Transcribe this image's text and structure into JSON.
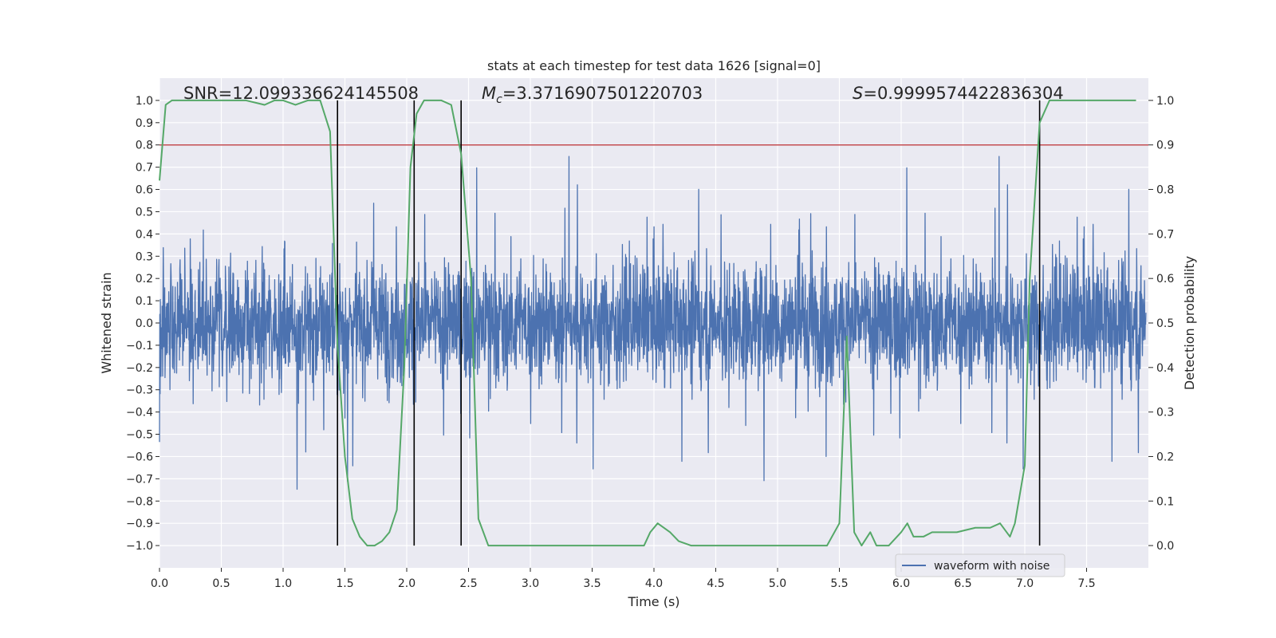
{
  "chart_data": {
    "type": "line",
    "title": "stats at each timestep for test data 1626 [signal=0]",
    "xlabel": "Time (s)",
    "ylabel": "Whitened strain",
    "y2label": "Detection probability",
    "xlim": [
      0.0,
      8.0
    ],
    "ylim": [
      -1.1,
      1.1
    ],
    "y2lim": [
      -0.05,
      1.05
    ],
    "xticks": [
      0.0,
      0.5,
      1.0,
      1.5,
      2.0,
      2.5,
      3.0,
      3.5,
      4.0,
      4.5,
      5.0,
      5.5,
      6.0,
      6.5,
      7.0,
      7.5
    ],
    "xtick_labels": [
      "0.0",
      "0.5",
      "1.0",
      "1.5",
      "2.0",
      "2.5",
      "3.0",
      "3.5",
      "4.0",
      "4.5",
      "5.0",
      "5.5",
      "6.0",
      "6.5",
      "7.0",
      "7.5"
    ],
    "yticks": [
      -1.0,
      -0.9,
      -0.8,
      -0.7,
      -0.6,
      -0.5,
      -0.4,
      -0.3,
      -0.2,
      -0.1,
      0.0,
      0.1,
      0.2,
      0.3,
      0.4,
      0.5,
      0.6,
      0.7,
      0.8,
      0.9,
      1.0
    ],
    "ytick_labels": [
      "−1.0",
      "−0.9",
      "−0.8",
      "−0.7",
      "−0.6",
      "−0.5",
      "−0.4",
      "−0.3",
      "−0.2",
      "−0.1",
      "0.0",
      "0.1",
      "0.2",
      "0.3",
      "0.4",
      "0.5",
      "0.6",
      "0.7",
      "0.8",
      "0.9",
      "1.0"
    ],
    "y2ticks": [
      0.0,
      0.1,
      0.2,
      0.3,
      0.4,
      0.5,
      0.6,
      0.7,
      0.8,
      0.9,
      1.0
    ],
    "y2tick_labels": [
      "0.0",
      "0.1",
      "0.2",
      "0.3",
      "0.4",
      "0.5",
      "0.6",
      "0.7",
      "0.8",
      "0.9",
      "1.0"
    ],
    "threshold": 0.9,
    "vlines": [
      1.44,
      2.06,
      2.44,
      7.12
    ],
    "annotations": {
      "snr": "SNR=12.099336624145508",
      "mc_symbol": "M",
      "mc_sub": "c",
      "mc_value": "=3.3716907501220703",
      "s_symbol": "S",
      "s_value": "=0.9999574422836304"
    },
    "series": [
      {
        "name": "waveform with noise",
        "axis": "left",
        "color": "#4c72b0",
        "description": "whitened noisy strain, roughly symmetric around 0 with typical envelope about ±0.45 and spikes to about ±0.85"
      },
      {
        "name": "detection probability",
        "axis": "right",
        "color": "#55a868",
        "x": [
          0.0,
          0.05,
          0.1,
          0.15,
          0.3,
          0.5,
          0.7,
          0.85,
          0.93,
          1.0,
          1.1,
          1.2,
          1.3,
          1.38,
          1.44,
          1.5,
          1.56,
          1.62,
          1.68,
          1.74,
          1.8,
          1.86,
          1.92,
          1.98,
          2.03,
          2.08,
          2.14,
          2.2,
          2.28,
          2.36,
          2.44,
          2.52,
          2.58,
          2.66,
          2.8,
          3.0,
          3.2,
          3.4,
          3.6,
          3.8,
          3.92,
          3.97,
          4.03,
          4.13,
          4.2,
          4.3,
          4.45,
          4.6,
          4.8,
          5.0,
          5.1,
          5.2,
          5.3,
          5.4,
          5.5,
          5.56,
          5.62,
          5.68,
          5.75,
          5.8,
          5.85,
          5.9,
          6.0,
          6.05,
          6.1,
          6.18,
          6.25,
          6.35,
          6.45,
          6.6,
          6.72,
          6.8,
          6.88,
          6.92,
          7.0,
          7.04,
          7.12,
          7.2,
          7.3,
          7.5,
          7.7,
          7.9
        ],
        "values": [
          0.82,
          0.99,
          1.0,
          1.0,
          1.0,
          1.0,
          1.0,
          0.99,
          1.0,
          1.0,
          0.99,
          1.0,
          1.0,
          0.93,
          0.45,
          0.2,
          0.06,
          0.02,
          0.0,
          0.0,
          0.01,
          0.03,
          0.08,
          0.4,
          0.85,
          0.97,
          1.0,
          1.0,
          1.0,
          0.99,
          0.88,
          0.6,
          0.06,
          0.0,
          0.0,
          0.0,
          0.0,
          0.0,
          0.0,
          0.0,
          0.0,
          0.03,
          0.05,
          0.03,
          0.01,
          0.0,
          0.0,
          0.0,
          0.0,
          0.0,
          0.0,
          0.0,
          0.0,
          0.0,
          0.05,
          0.47,
          0.03,
          0.0,
          0.03,
          0.0,
          0.0,
          0.0,
          0.03,
          0.05,
          0.02,
          0.02,
          0.03,
          0.03,
          0.03,
          0.04,
          0.04,
          0.05,
          0.02,
          0.05,
          0.18,
          0.6,
          0.95,
          1.0,
          1.0,
          1.0,
          1.0,
          1.0
        ]
      }
    ],
    "legend": {
      "label": "waveform with noise",
      "location": "lower-right"
    }
  }
}
